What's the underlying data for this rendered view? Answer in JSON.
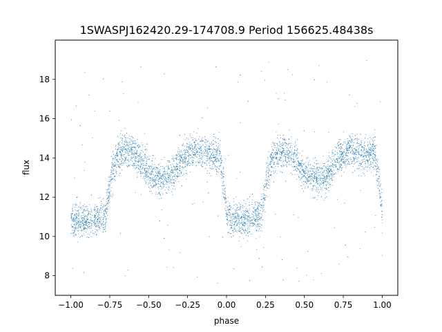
{
  "chart_data": {
    "type": "scatter",
    "title": "1SWASPJ162420.29-174708.9 Period 156625.48438s",
    "xlabel": "phase",
    "ylabel": "flux",
    "xlim": [
      -1.1,
      1.1
    ],
    "ylim": [
      7.0,
      20.0
    ],
    "xticks": [
      -1.0,
      -0.75,
      -0.5,
      -0.25,
      0.0,
      0.25,
      0.5,
      0.75,
      1.0
    ],
    "xtick_labels": [
      "−1.00",
      "−0.75",
      "−0.50",
      "−0.25",
      "0.00",
      "0.25",
      "0.50",
      "0.75",
      "1.00"
    ],
    "yticks": [
      8,
      10,
      12,
      14,
      16,
      18
    ],
    "ytick_labels": [
      "8",
      "10",
      "12",
      "14",
      "16",
      "18"
    ],
    "grid": false,
    "point_color": "#1f77b4",
    "profile": {
      "x": [
        0.0,
        0.05,
        0.1,
        0.15,
        0.2,
        0.22,
        0.25,
        0.3,
        0.35,
        0.4,
        0.45,
        0.5,
        0.55,
        0.6,
        0.65,
        0.7,
        0.75,
        0.8,
        0.85,
        0.9,
        0.95,
        0.98,
        1.0
      ],
      "y": [
        10.8,
        10.8,
        10.8,
        10.9,
        11.0,
        11.0,
        12.8,
        14.2,
        14.4,
        14.3,
        13.8,
        13.2,
        13.0,
        12.9,
        13.2,
        13.8,
        14.2,
        14.4,
        14.3,
        14.1,
        14.3,
        12.8,
        10.8
      ]
    },
    "notes": "Phase-folded light curve shown twice (phase -1 to 1); dense band of points with ~0.5 flux scatter, primary eclipse near flux 10.8, secondary minimum near 13.0, maxima near 14.4, sparse outliers between 7.5 and 19."
  }
}
